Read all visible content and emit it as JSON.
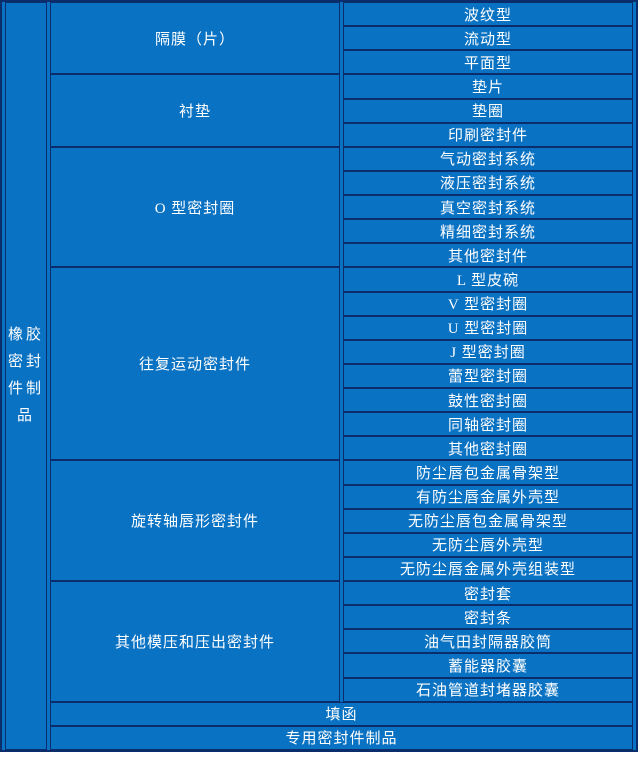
{
  "page": {
    "background_color": "#ffffff"
  },
  "table": {
    "colors": {
      "cell_fill": "#0a72c3",
      "cell_border": "#0b2d6b",
      "text": "#ffffff"
    },
    "root_label": "橡胶密封件制品",
    "groups": [
      {
        "label": "隔膜（片）",
        "items": [
          "波纹型",
          "流动型",
          "平面型"
        ]
      },
      {
        "label": "衬垫",
        "items": [
          "垫片",
          "垫圈",
          "印刷密封件"
        ]
      },
      {
        "label": "O 型密封圈",
        "items": [
          "气动密封系统",
          "液压密封系统",
          "真空密封系统",
          "精细密封系统",
          "其他密封件"
        ]
      },
      {
        "label": "往复运动密封件",
        "items": [
          "L 型皮碗",
          "V 型密封圈",
          "U 型密封圈",
          "J 型密封圈",
          "蕾型密封圈",
          "鼓性密封圈",
          "同轴密封圈",
          "其他密封圈"
        ]
      },
      {
        "label": "旋转轴唇形密封件",
        "items": [
          "防尘唇包金属骨架型",
          "有防尘唇金属外壳型",
          "无防尘唇包金属骨架型",
          "无防尘唇外壳型",
          "无防尘唇金属外壳组装型"
        ]
      },
      {
        "label": "其他模压和压出密封件",
        "items": [
          "密封套",
          "密封条",
          "油气田封隔器胶筒",
          "蓄能器胶囊",
          "石油管道封堵器胶囊"
        ]
      }
    ],
    "full_width_rows": [
      "填函",
      "专用密封件制品"
    ]
  }
}
